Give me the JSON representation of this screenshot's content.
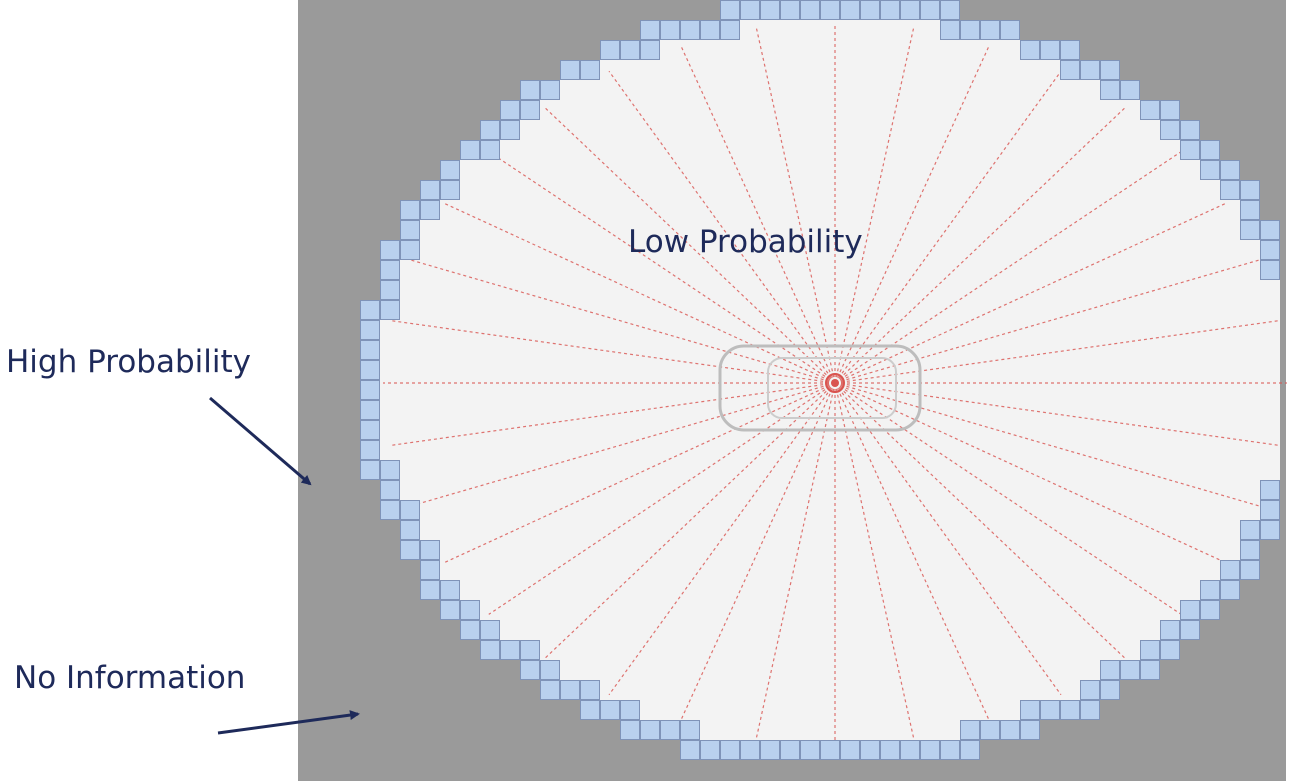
{
  "labels": {
    "low_probability": "Low Probability",
    "high_probability": "High Probability",
    "no_information": "No Information"
  },
  "colors": {
    "unknown_cell": "#9a9a9a",
    "free_cell": "#f3f3f3",
    "occupied_cell": "#b9d0ee",
    "occupied_border": "#7f93b8",
    "ray": "#d9534f",
    "label": "#1e2a5a"
  }
}
